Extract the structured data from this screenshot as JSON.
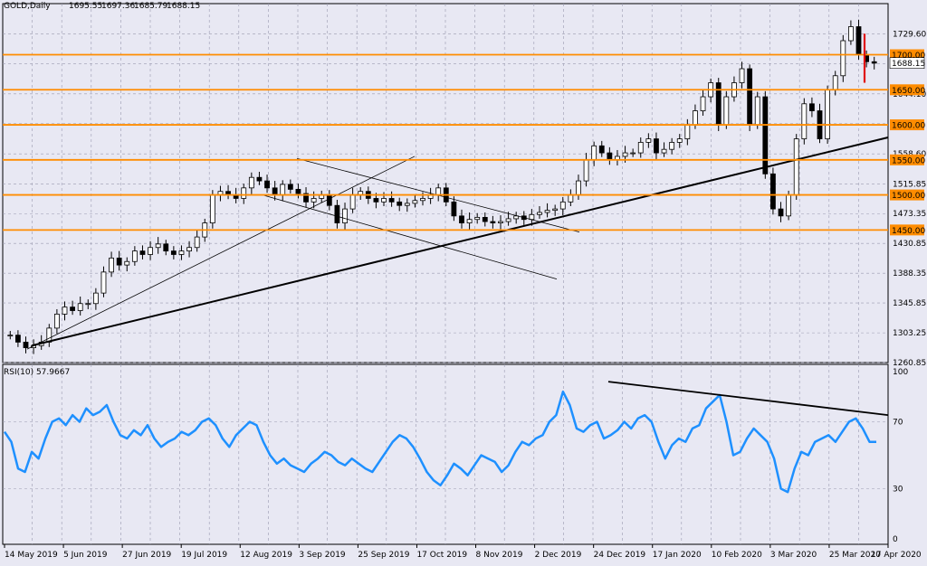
{
  "header": {
    "symbol": "GOLD,Daily",
    "open": "1695.55",
    "high": "1697.36",
    "low": "1685.79",
    "close": "1688.15"
  },
  "rsi_label": "RSI(10) 57.9667",
  "colors": {
    "bg": "#e8e8f3",
    "grid": "#9a9ab0",
    "candle": "#000000",
    "level": "#ff8c00",
    "rsi": "#1e90ff",
    "last": "#e01010"
  },
  "chart_data": {
    "type": "candlestick",
    "price_axis": {
      "ylim": [
        1260.85,
        1760
      ],
      "ticks": [
        1729.6,
        1687.35,
        1644.1,
        1601.85,
        1558.6,
        1515.85,
        1473.35,
        1430.85,
        1388.35,
        1345.85,
        1303.25,
        1260.85
      ],
      "labels": [
        "1729.60",
        "",
        "1644.10",
        "",
        "1558.60",
        "1515.85",
        "1473.35",
        "1430.85",
        "1388.35",
        "1345.85",
        "1303.25",
        "1260.85"
      ]
    },
    "levels": [
      1700,
      1650,
      1600,
      1550,
      1500,
      1450
    ],
    "level_labels": [
      "1700.00",
      "1650.00",
      "1600.00",
      "1550.00",
      "1500.00",
      "1450.00"
    ],
    "current_price_label": "1688.15",
    "x_labels": [
      "14 May 2019",
      "5 Jun 2019",
      "27 Jun 2019",
      "19 Jul 2019",
      "12 Aug 2019",
      "3 Sep 2019",
      "25 Sep 2019",
      "17 Oct 2019",
      "8 Nov 2019",
      "2 Dec 2019",
      "24 Dec 2019",
      "17 Jan 2020",
      "10 Feb 2020",
      "3 Mar 2020",
      "25 Mar 2020",
      "17 Apr 2020"
    ],
    "close_path": [
      1300,
      1290,
      1282,
      1285,
      1290,
      1310,
      1330,
      1340,
      1335,
      1345,
      1345,
      1360,
      1390,
      1410,
      1400,
      1405,
      1420,
      1415,
      1425,
      1430,
      1420,
      1415,
      1420,
      1425,
      1440,
      1460,
      1500,
      1505,
      1500,
      1495,
      1510,
      1525,
      1520,
      1510,
      1500,
      1515,
      1508,
      1502,
      1490,
      1495,
      1500,
      1485,
      1460,
      1480,
      1500,
      1505,
      1495,
      1490,
      1495,
      1490,
      1485,
      1488,
      1492,
      1495,
      1500,
      1510,
      1490,
      1470,
      1460,
      1465,
      1468,
      1462,
      1460,
      1462,
      1466,
      1470,
      1465,
      1472,
      1475,
      1478,
      1480,
      1490,
      1500,
      1520,
      1550,
      1570,
      1560,
      1550,
      1555,
      1560,
      1560,
      1575,
      1580,
      1560,
      1565,
      1575,
      1580,
      1600,
      1620,
      1640,
      1660,
      1600,
      1640,
      1660,
      1680,
      1600,
      1640,
      1530,
      1480,
      1470,
      1500,
      1580,
      1630,
      1620,
      1580,
      1650,
      1670,
      1720,
      1740,
      1700,
      1690,
      1688
    ],
    "rsi": {
      "ylim": [
        0,
        100
      ],
      "ticks": [
        100,
        70,
        30,
        0
      ],
      "labels": [
        "100",
        "70",
        "30",
        "0"
      ],
      "values": [
        64,
        58,
        42,
        40,
        52,
        48,
        60,
        70,
        72,
        68,
        74,
        70,
        78,
        74,
        76,
        80,
        70,
        62,
        60,
        65,
        62,
        68,
        60,
        55,
        58,
        60,
        64,
        62,
        65,
        70,
        72,
        68,
        60,
        55,
        62,
        66,
        70,
        68,
        58,
        50,
        45,
        48,
        44,
        42,
        40,
        45,
        48,
        52,
        50,
        46,
        44,
        48,
        45,
        42,
        40,
        46,
        52,
        58,
        62,
        60,
        55,
        48,
        40,
        35,
        32,
        38,
        45,
        42,
        38,
        44,
        50,
        48,
        46,
        40,
        44,
        52,
        58,
        56,
        60,
        62,
        70,
        74,
        88,
        80,
        66,
        64,
        68,
        70,
        60,
        62,
        65,
        70,
        66,
        72,
        74,
        70,
        58,
        48,
        56,
        60,
        58,
        66,
        68,
        78,
        82,
        86,
        70,
        50,
        52,
        60,
        66,
        62,
        58,
        48,
        30,
        28,
        42,
        52,
        50,
        58,
        60,
        62,
        58,
        64,
        70,
        72,
        66,
        58,
        57.97
      ]
    }
  }
}
